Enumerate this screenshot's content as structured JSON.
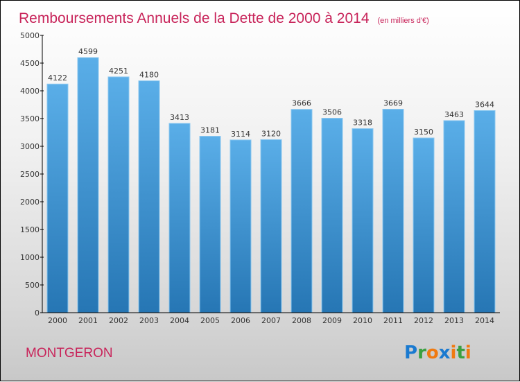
{
  "chart_data": {
    "type": "bar",
    "title": "Remboursements Annuels de la Dette de 2000 à 2014",
    "subtitle": "(en milliers d'€)",
    "categories": [
      "2000",
      "2001",
      "2002",
      "2003",
      "2004",
      "2005",
      "2006",
      "2007",
      "2008",
      "2009",
      "2010",
      "2011",
      "2012",
      "2013",
      "2014"
    ],
    "values": [
      4122,
      4599,
      4251,
      4180,
      3413,
      3181,
      3114,
      3120,
      3666,
      3506,
      3318,
      3669,
      3150,
      3463,
      3644
    ],
    "yticks": [
      0,
      500,
      1000,
      1500,
      2000,
      2500,
      3000,
      3500,
      4000,
      4500,
      5000
    ],
    "ylim": [
      0,
      5000
    ],
    "xlabel": "",
    "ylabel": "",
    "grid": false
  },
  "footer": {
    "city": "MONTGERON",
    "logo": "Proxiti"
  },
  "colors": {
    "title": "#c8245a",
    "bar_top": "#5aaee8",
    "bar_bottom": "#2676b4"
  }
}
